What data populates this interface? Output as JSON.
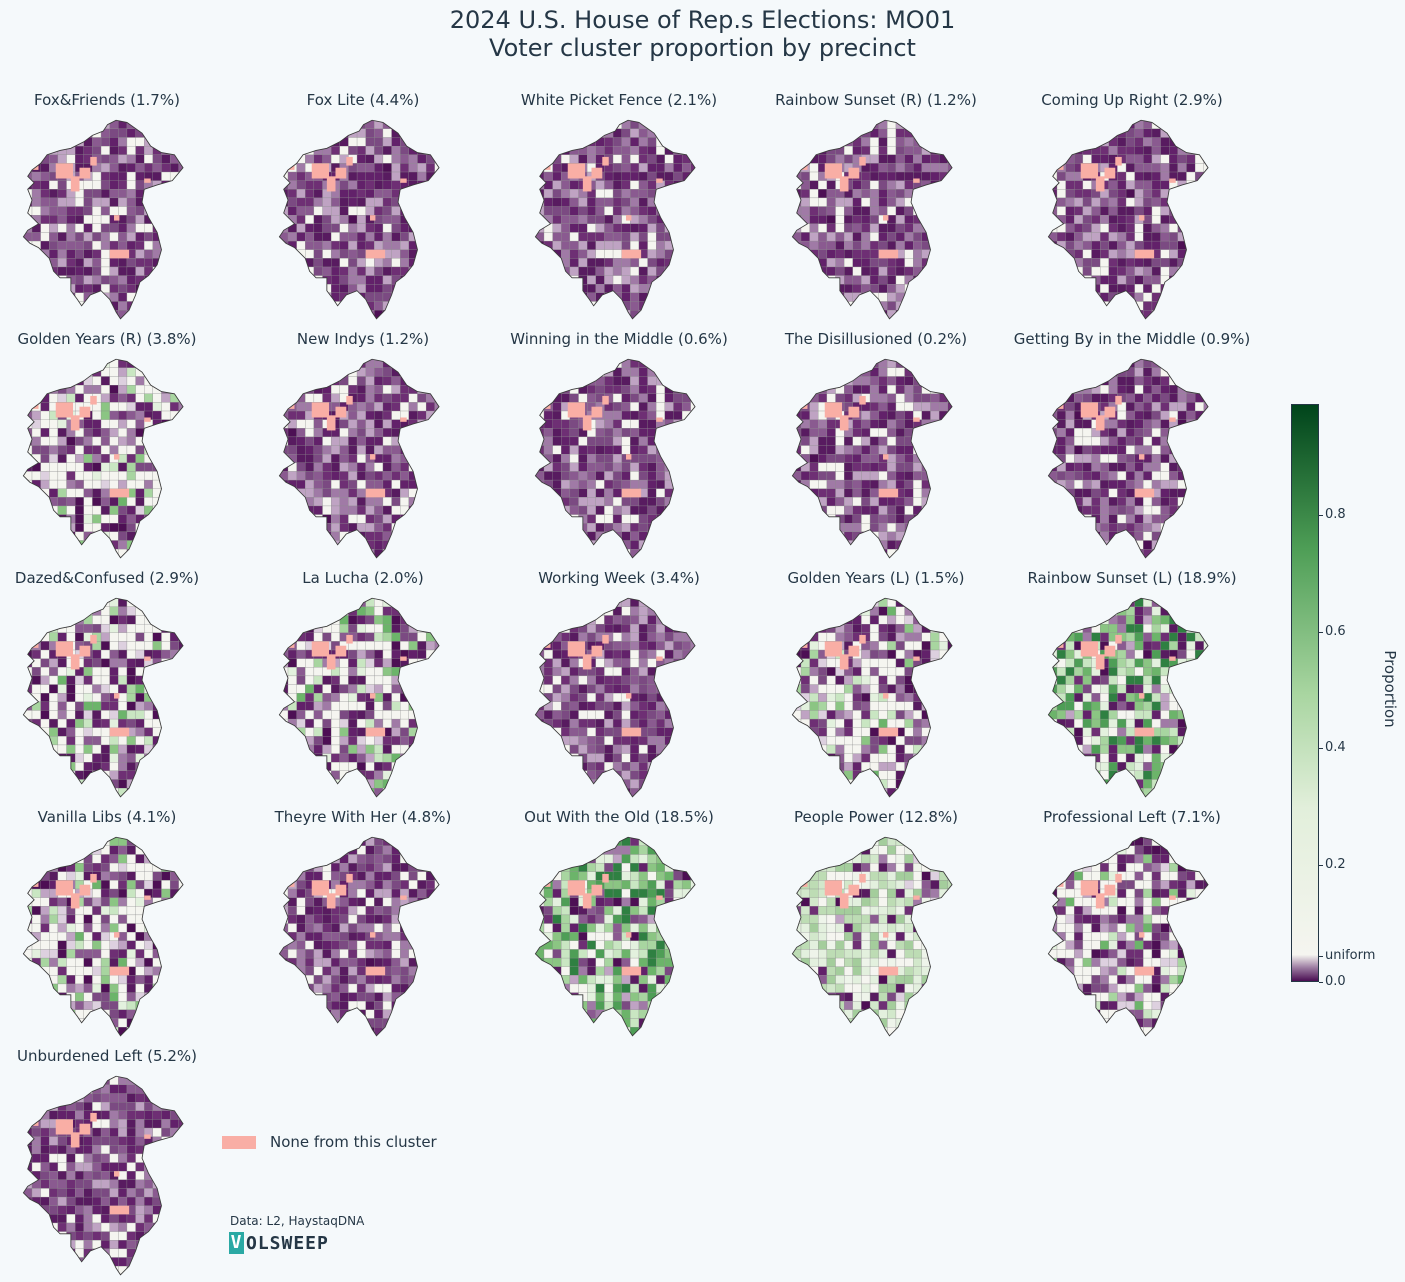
{
  "title": {
    "line1": "2024 U.S. House of Rep.s Elections: MO01",
    "line2": "Voter cluster proportion by precinct"
  },
  "panels": [
    {
      "title": "Fox&Friends (1.7%)",
      "scheme": "purple"
    },
    {
      "title": "Fox Lite (4.4%)",
      "scheme": "purple"
    },
    {
      "title": "White Picket Fence (2.1%)",
      "scheme": "purple"
    },
    {
      "title": "Rainbow Sunset (R) (1.2%)",
      "scheme": "purple"
    },
    {
      "title": "Coming Up Right (2.9%)",
      "scheme": "purple"
    },
    {
      "title": "Golden Years (R) (3.8%)",
      "scheme": "mixed"
    },
    {
      "title": "New Indys (1.2%)",
      "scheme": "purple"
    },
    {
      "title": "Winning in the Middle (0.6%)",
      "scheme": "purple"
    },
    {
      "title": "The Disillusioned (0.2%)",
      "scheme": "purple"
    },
    {
      "title": "Getting By in the Middle (0.9%)",
      "scheme": "purple"
    },
    {
      "title": "Dazed&Confused (2.9%)",
      "scheme": "mixed"
    },
    {
      "title": "La Lucha (2.0%)",
      "scheme": "mixed"
    },
    {
      "title": "Working Week (3.4%)",
      "scheme": "purple"
    },
    {
      "title": "Golden Years (L) (1.5%)",
      "scheme": "mixed"
    },
    {
      "title": "Rainbow Sunset (L) (18.9%)",
      "scheme": "green"
    },
    {
      "title": "Vanilla Libs (4.1%)",
      "scheme": "mixed"
    },
    {
      "title": "Theyre With Her (4.8%)",
      "scheme": "purple"
    },
    {
      "title": "Out With the Old (18.5%)",
      "scheme": "green"
    },
    {
      "title": "People Power (12.8%)",
      "scheme": "lightgreen"
    },
    {
      "title": "Professional Left (7.1%)",
      "scheme": "mixed"
    },
    {
      "title": "Unburdened Left (5.2%)",
      "scheme": "purple"
    }
  ],
  "legend": {
    "none_label": "None from this cluster",
    "none_color": "#f9aea5"
  },
  "source": "Data: L2, HaystaqDNA",
  "logo": {
    "v": "V",
    "rest": "OLSWEEP"
  },
  "colorbar": {
    "label": "Proportion",
    "ticks": [
      {
        "label": "0.8",
        "value": 0.8
      },
      {
        "label": "0.6",
        "value": 0.6
      },
      {
        "label": "0.4",
        "value": 0.4
      },
      {
        "label": "0.2",
        "value": 0.2
      },
      {
        "label": "uniform",
        "value": 0.045
      },
      {
        "label": "0.0",
        "value": 0.0
      }
    ],
    "colors": {
      "low": "#4a0e52",
      "uniform": "#f5f5f0",
      "high": "#00441b"
    }
  }
}
